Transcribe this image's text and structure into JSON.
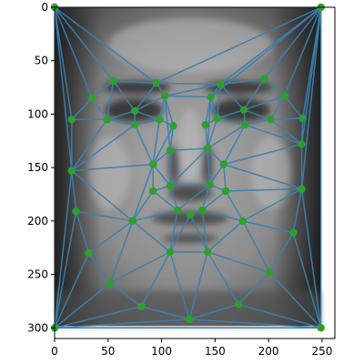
{
  "chart_data": {
    "type": "scatter",
    "description_kind": "triangulation-mesh-over-image",
    "title": "",
    "xlabel": "",
    "ylabel": "",
    "xlim": [
      0,
      262
    ],
    "ylim": [
      310,
      0
    ],
    "y_axis_inverted": true,
    "grid": false,
    "xticks": [
      0,
      50,
      100,
      150,
      200,
      250
    ],
    "yticks": [
      0,
      50,
      100,
      150,
      200,
      250,
      300
    ],
    "xtick_labels": [
      "0",
      "50",
      "100",
      "150",
      "200",
      "250"
    ],
    "ytick_labels": [
      "0",
      "50",
      "100",
      "150",
      "200",
      "250",
      "300"
    ],
    "background_image": "grayscale-face",
    "colors": {
      "edge": "#3b7fb0",
      "point": "#2ca02c"
    },
    "points": [
      {
        "x": 0,
        "y": 0
      },
      {
        "x": 249,
        "y": 0
      },
      {
        "x": 0,
        "y": 300
      },
      {
        "x": 249,
        "y": 300
      },
      {
        "x": 35,
        "y": 85
      },
      {
        "x": 55,
        "y": 69
      },
      {
        "x": 95,
        "y": 71
      },
      {
        "x": 103,
        "y": 83
      },
      {
        "x": 16,
        "y": 105
      },
      {
        "x": 49,
        "y": 105
      },
      {
        "x": 75,
        "y": 97
      },
      {
        "x": 75,
        "y": 110
      },
      {
        "x": 98,
        "y": 105
      },
      {
        "x": 111,
        "y": 111
      },
      {
        "x": 146,
        "y": 84
      },
      {
        "x": 155,
        "y": 72
      },
      {
        "x": 196,
        "y": 67
      },
      {
        "x": 215,
        "y": 83
      },
      {
        "x": 141,
        "y": 110
      },
      {
        "x": 152,
        "y": 104
      },
      {
        "x": 177,
        "y": 96
      },
      {
        "x": 178,
        "y": 110
      },
      {
        "x": 202,
        "y": 105
      },
      {
        "x": 232,
        "y": 104
      },
      {
        "x": 231,
        "y": 128
      },
      {
        "x": 108,
        "y": 134
      },
      {
        "x": 143,
        "y": 132
      },
      {
        "x": 16,
        "y": 153
      },
      {
        "x": 92,
        "y": 147
      },
      {
        "x": 158,
        "y": 147
      },
      {
        "x": 92,
        "y": 172
      },
      {
        "x": 108,
        "y": 167
      },
      {
        "x": 145,
        "y": 166
      },
      {
        "x": 160,
        "y": 172
      },
      {
        "x": 231,
        "y": 170
      },
      {
        "x": 20,
        "y": 191
      },
      {
        "x": 73,
        "y": 200
      },
      {
        "x": 115,
        "y": 190
      },
      {
        "x": 127,
        "y": 194
      },
      {
        "x": 138,
        "y": 190
      },
      {
        "x": 176,
        "y": 200
      },
      {
        "x": 223,
        "y": 211
      },
      {
        "x": 32,
        "y": 230
      },
      {
        "x": 108,
        "y": 229
      },
      {
        "x": 143,
        "y": 229
      },
      {
        "x": 201,
        "y": 248
      },
      {
        "x": 52,
        "y": 258
      },
      {
        "x": 81,
        "y": 280
      },
      {
        "x": 126,
        "y": 292
      },
      {
        "x": 172,
        "y": 278
      }
    ],
    "edges": [
      [
        0,
        1
      ],
      [
        0,
        4
      ],
      [
        0,
        5
      ],
      [
        0,
        6
      ],
      [
        0,
        8
      ],
      [
        0,
        27
      ],
      [
        0,
        2
      ],
      [
        1,
        6
      ],
      [
        1,
        14
      ],
      [
        1,
        15
      ],
      [
        1,
        16
      ],
      [
        1,
        17
      ],
      [
        1,
        23
      ],
      [
        1,
        24
      ],
      [
        1,
        34
      ],
      [
        1,
        3
      ],
      [
        2,
        27
      ],
      [
        2,
        35
      ],
      [
        2,
        42
      ],
      [
        2,
        46
      ],
      [
        2,
        47
      ],
      [
        2,
        48
      ],
      [
        2,
        3
      ],
      [
        3,
        48
      ],
      [
        3,
        49
      ],
      [
        3,
        45
      ],
      [
        3,
        41
      ],
      [
        3,
        34
      ],
      [
        4,
        5
      ],
      [
        4,
        8
      ],
      [
        4,
        9
      ],
      [
        5,
        6
      ],
      [
        5,
        9
      ],
      [
        5,
        10
      ],
      [
        6,
        7
      ],
      [
        6,
        15
      ],
      [
        6,
        10
      ],
      [
        7,
        10
      ],
      [
        7,
        12
      ],
      [
        7,
        13
      ],
      [
        7,
        14
      ],
      [
        7,
        15
      ],
      [
        7,
        25
      ],
      [
        8,
        9
      ],
      [
        8,
        27
      ],
      [
        9,
        10
      ],
      [
        9,
        11
      ],
      [
        9,
        27
      ],
      [
        10,
        11
      ],
      [
        10,
        12
      ],
      [
        11,
        12
      ],
      [
        11,
        27
      ],
      [
        11,
        28
      ],
      [
        12,
        13
      ],
      [
        12,
        28
      ],
      [
        13,
        25
      ],
      [
        13,
        28
      ],
      [
        14,
        15
      ],
      [
        14,
        18
      ],
      [
        14,
        19
      ],
      [
        14,
        26
      ],
      [
        15,
        16
      ],
      [
        15,
        19
      ],
      [
        15,
        20
      ],
      [
        16,
        17
      ],
      [
        16,
        20
      ],
      [
        17,
        20
      ],
      [
        17,
        22
      ],
      [
        17,
        23
      ],
      [
        18,
        19
      ],
      [
        18,
        26
      ],
      [
        19,
        20
      ],
      [
        19,
        21
      ],
      [
        19,
        26
      ],
      [
        20,
        21
      ],
      [
        20,
        22
      ],
      [
        21,
        22
      ],
      [
        21,
        24
      ],
      [
        21,
        29
      ],
      [
        21,
        26
      ],
      [
        22,
        23
      ],
      [
        22,
        24
      ],
      [
        23,
        24
      ],
      [
        24,
        29
      ],
      [
        24,
        34
      ],
      [
        25,
        26
      ],
      [
        25,
        28
      ],
      [
        25,
        31
      ],
      [
        26,
        29
      ],
      [
        26,
        31
      ],
      [
        26,
        32
      ],
      [
        27,
        28
      ],
      [
        27,
        35
      ],
      [
        27,
        36
      ],
      [
        28,
        30
      ],
      [
        28,
        31
      ],
      [
        28,
        36
      ],
      [
        29,
        32
      ],
      [
        29,
        33
      ],
      [
        29,
        34
      ],
      [
        30,
        31
      ],
      [
        30,
        36
      ],
      [
        30,
        37
      ],
      [
        31,
        32
      ],
      [
        31,
        37
      ],
      [
        32,
        33
      ],
      [
        32,
        39
      ],
      [
        32,
        37
      ],
      [
        33,
        34
      ],
      [
        33,
        39
      ],
      [
        33,
        40
      ],
      [
        34,
        40
      ],
      [
        34,
        41
      ],
      [
        35,
        36
      ],
      [
        35,
        42
      ],
      [
        36,
        37
      ],
      [
        36,
        42
      ],
      [
        36,
        43
      ],
      [
        36,
        46
      ],
      [
        37,
        38
      ],
      [
        37,
        43
      ],
      [
        38,
        39
      ],
      [
        38,
        43
      ],
      [
        38,
        44
      ],
      [
        39,
        40
      ],
      [
        39,
        44
      ],
      [
        40,
        41
      ],
      [
        40,
        44
      ],
      [
        40,
        45
      ],
      [
        41,
        45
      ],
      [
        42,
        46
      ],
      [
        43,
        44
      ],
      [
        43,
        46
      ],
      [
        43,
        47
      ],
      [
        43,
        48
      ],
      [
        44,
        48
      ],
      [
        44,
        49
      ],
      [
        44,
        45
      ],
      [
        45,
        49
      ],
      [
        46,
        47
      ],
      [
        47,
        48
      ],
      [
        48,
        49
      ]
    ]
  }
}
